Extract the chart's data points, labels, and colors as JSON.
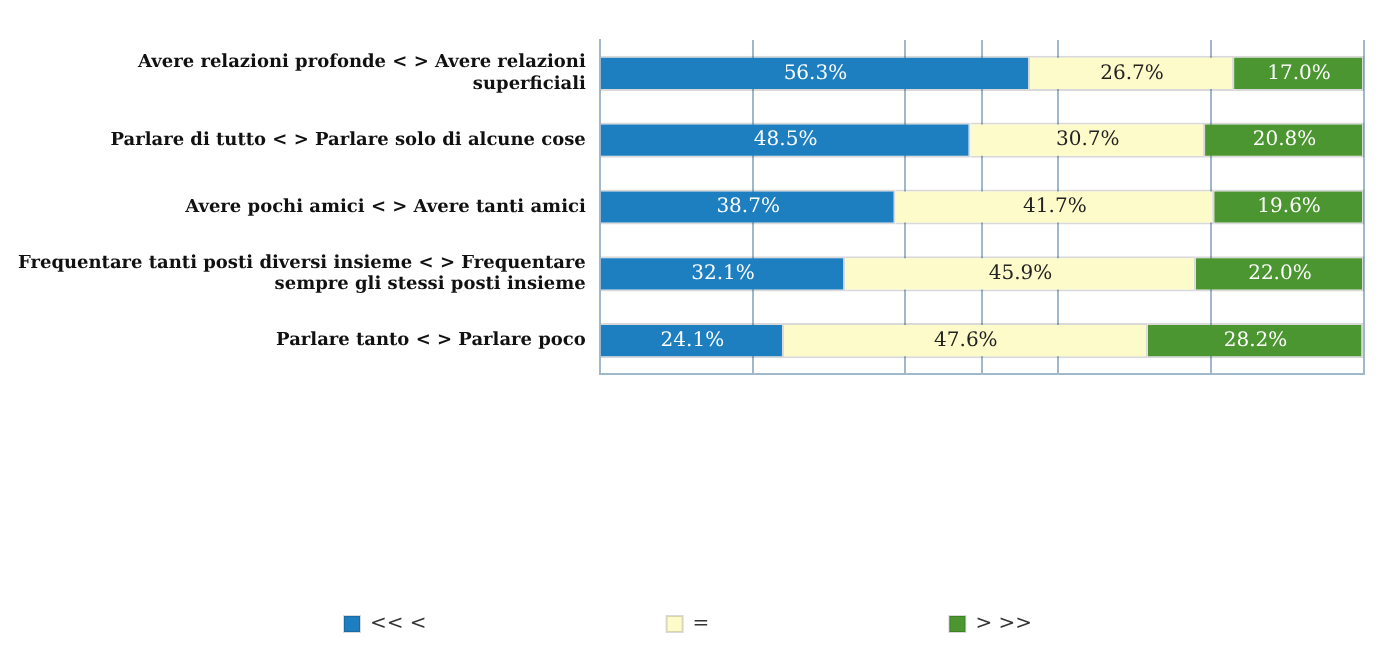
{
  "chart_data": {
    "type": "bar",
    "orientation": "horizontal",
    "stacked": true,
    "categories": [
      "Avere relazioni profonde < > Avere relazioni superficiali",
      "Parlare di tutto < > Parlare solo di alcune cose",
      "Avere pochi amici < > Avere tanti amici",
      "Frequentare tanti posti diversi insieme < > Frequentare sempre gli stessi posti insieme",
      "Parlare tanto < > Parlare poco"
    ],
    "series": [
      {
        "name": "<< <",
        "color": "#1d7fc0",
        "values": [
          56.3,
          48.5,
          38.7,
          32.1,
          24.1
        ],
        "value_labels": [
          "56.3%",
          "48.5%",
          "38.7%",
          "32.1%",
          "24.1%"
        ]
      },
      {
        "name": "=",
        "color": "#fdfbc9",
        "values": [
          26.7,
          30.7,
          41.7,
          45.9,
          47.6
        ],
        "value_labels": [
          "26.7%",
          "30.7%",
          "41.7%",
          "45.9%",
          "47.6%"
        ]
      },
      {
        "name": "> >>",
        "color": "#4b9630",
        "values": [
          17.0,
          20.8,
          19.6,
          22.0,
          28.2
        ],
        "value_labels": [
          "17.0%",
          "20.8%",
          "19.6%",
          "22.0%",
          "28.2%"
        ]
      }
    ],
    "xlim": [
      0,
      100
    ],
    "xticks": [
      {
        "value": 0,
        "label": null
      },
      {
        "value": 20,
        "label": null
      },
      {
        "value": 40,
        "label": null
      },
      {
        "value": 50,
        "label": null
      },
      {
        "value": 60,
        "label": null
      },
      {
        "value": 80,
        "label": null
      },
      {
        "value": 100,
        "label": null
      }
    ],
    "tick_labels": "y",
    "grid": "x",
    "legend": "bottom"
  }
}
